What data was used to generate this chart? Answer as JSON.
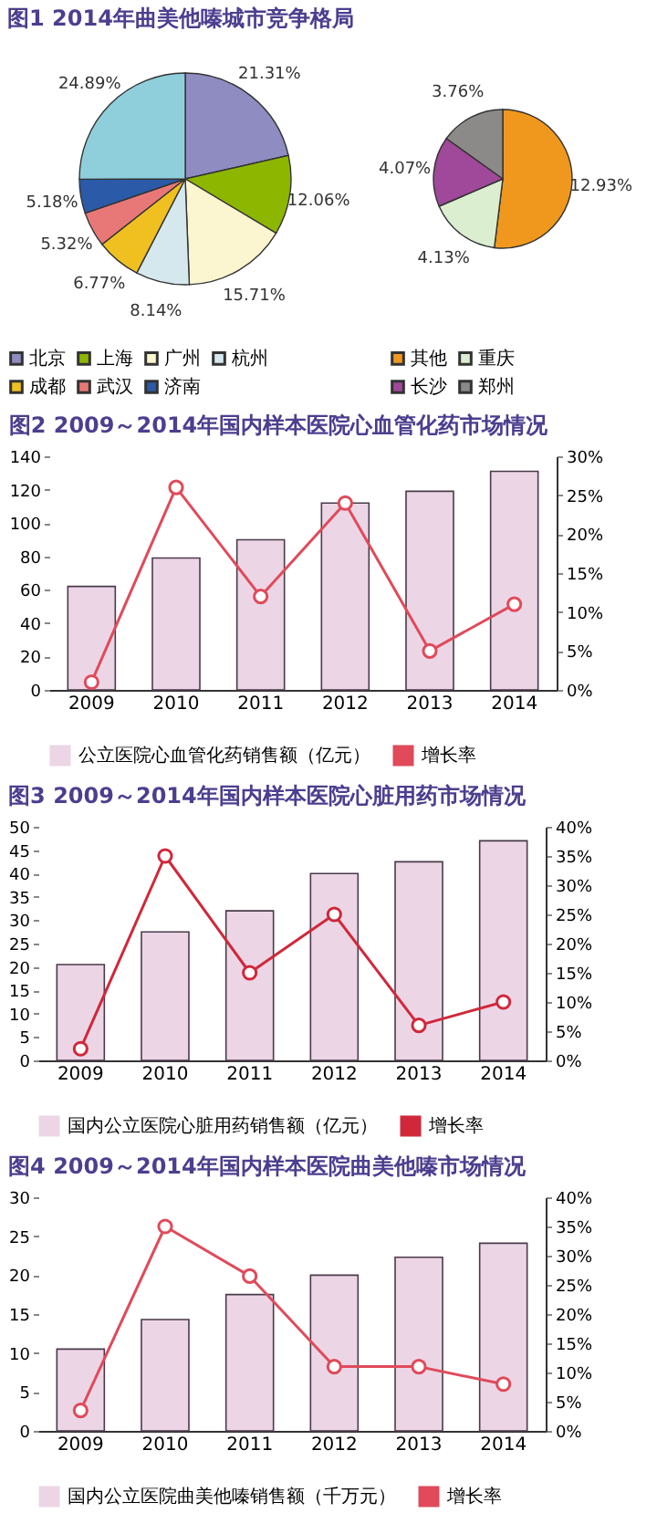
{
  "chart_data": [
    {
      "type": "pie",
      "title": "图1 2014年曲美他嗪城市竞争格局",
      "categories": [
        "北京",
        "上海",
        "广州",
        "杭州",
        "成都",
        "武汉",
        "济南",
        null
      ],
      "values": [
        21.31,
        12.06,
        15.71,
        8.14,
        6.77,
        5.32,
        5.18,
        24.89
      ],
      "value_labels": [
        "21.31%",
        "12.06%",
        "15.71%",
        "8.14%",
        "6.77%",
        "5.32%",
        "5.18%",
        "24.89%"
      ],
      "colors": [
        "#8e8cc0",
        "#8db600",
        "#fbf5d0",
        "#d4e8ee",
        "#f0c020",
        "#e87878",
        "#2a5aa8",
        "#8ecfdb"
      ],
      "legend": "bottom"
    },
    {
      "type": "pie",
      "categories": [
        "其他",
        "重庆",
        "长沙",
        "郑州"
      ],
      "values": [
        12.93,
        4.13,
        4.07,
        3.76
      ],
      "value_labels": [
        "12.93%",
        "4.13%",
        "4.07%",
        "3.76%"
      ],
      "colors": [
        "#f0981e",
        "#dbeed0",
        "#a0489a",
        "#8c8a88"
      ],
      "legend": "bottom"
    },
    {
      "type": "bar",
      "title": "图2 2009～2014年国内样本医院心血管化药市场情况",
      "categories": [
        "2009",
        "2010",
        "2011",
        "2012",
        "2013",
        "2014"
      ],
      "ylim": [
        0,
        140
      ],
      "yticks": [
        0,
        20,
        40,
        60,
        80,
        100,
        120,
        140
      ],
      "y2lim": [
        0,
        30
      ],
      "y2ticks": [
        {
          "value": 0,
          "label": "0%"
        },
        {
          "value": 5,
          "label": "5%"
        },
        {
          "value": 10,
          "label": "10%"
        },
        {
          "value": 15,
          "label": "15%"
        },
        {
          "value": 20,
          "label": "20%"
        },
        {
          "value": 25,
          "label": "25%"
        },
        {
          "value": 30,
          "label": "30%"
        }
      ],
      "legend": "bottom",
      "series": [
        {
          "name": "公立医院心血管化药销售额（亿元）",
          "color": "#ecd6e6",
          "values": [
            62,
            79,
            90,
            112,
            119,
            131
          ]
        },
        {
          "name": "增长率",
          "type": "line",
          "axis": "y2",
          "marker": "circle",
          "color": "#e04a5a",
          "values": [
            1,
            26,
            12,
            24,
            5,
            11
          ]
        }
      ]
    },
    {
      "type": "bar",
      "title": "图3 2009～2014年国内样本医院心脏用药市场情况",
      "categories": [
        "2009",
        "2010",
        "2011",
        "2012",
        "2013",
        "2014"
      ],
      "ylim": [
        0,
        50
      ],
      "yticks": [
        0,
        5,
        10,
        15,
        20,
        25,
        30,
        35,
        40,
        45,
        50
      ],
      "y2lim": [
        0,
        40
      ],
      "y2ticks": [
        {
          "value": 0,
          "label": "0%"
        },
        {
          "value": 5,
          "label": "5%"
        },
        {
          "value": 10,
          "label": "10%"
        },
        {
          "value": 15,
          "label": "15%"
        },
        {
          "value": 20,
          "label": "20%"
        },
        {
          "value": 25,
          "label": "25%"
        },
        {
          "value": 30,
          "label": "30%"
        },
        {
          "value": 35,
          "label": "35%"
        },
        {
          "value": 40,
          "label": "40%"
        }
      ],
      "legend": "bottom",
      "series": [
        {
          "name": "国内公立医院心脏用药销售额（亿元）",
          "color": "#ecd6e6",
          "values": [
            20.5,
            27.5,
            32,
            40,
            42.5,
            47
          ]
        },
        {
          "name": "增长率",
          "type": "line",
          "axis": "y2",
          "marker": "circle",
          "color": "#d0283a",
          "values": [
            2,
            35,
            15,
            25,
            6,
            10
          ]
        }
      ]
    },
    {
      "type": "bar",
      "title": "图4 2009～2014年国内样本医院曲美他嗪市场情况",
      "categories": [
        "2009",
        "2010",
        "2011",
        "2012",
        "2013",
        "2014"
      ],
      "ylim": [
        0,
        30
      ],
      "yticks": [
        0,
        5,
        10,
        15,
        20,
        25,
        30
      ],
      "y2lim": [
        0,
        40
      ],
      "y2ticks": [
        {
          "value": 0,
          "label": "0%"
        },
        {
          "value": 5,
          "label": "5%"
        },
        {
          "value": 10,
          "label": "10%"
        },
        {
          "value": 15,
          "label": "15%"
        },
        {
          "value": 20,
          "label": "20%"
        },
        {
          "value": 25,
          "label": "25%"
        },
        {
          "value": 30,
          "label": "30%"
        },
        {
          "value": 35,
          "label": "35%"
        },
        {
          "value": 40,
          "label": "40%"
        }
      ],
      "legend": "bottom",
      "series": [
        {
          "name": "国内公立医院曲美他嗪销售额（千万元）",
          "color": "#ecd6e6",
          "values": [
            10.5,
            14.3,
            17.5,
            20,
            22.3,
            24.1
          ]
        },
        {
          "name": "增长率",
          "type": "line",
          "axis": "y2",
          "marker": "circle",
          "color": "#e04a5a",
          "values": [
            3.5,
            35,
            26.5,
            11,
            11,
            8
          ]
        }
      ]
    }
  ]
}
